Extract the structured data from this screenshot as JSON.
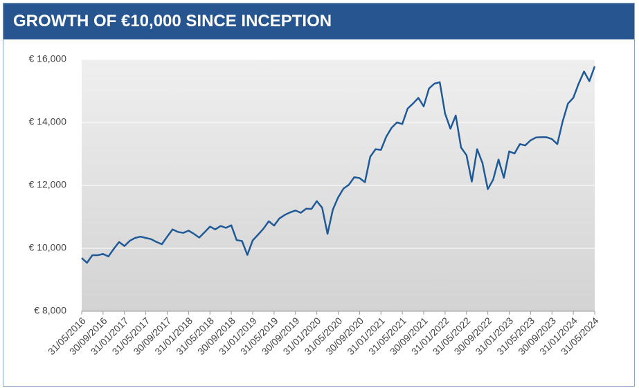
{
  "chart_data": {
    "type": "line",
    "title": "GROWTH OF €10,000 SINCE INCEPTION",
    "categories": [
      "31/05/2016",
      null,
      null,
      null,
      "30/09/2016",
      null,
      null,
      null,
      "31/01/2017",
      null,
      null,
      null,
      "31/05/2017",
      null,
      null,
      null,
      "30/09/2017",
      null,
      null,
      null,
      "31/01/2018",
      null,
      null,
      null,
      "31/05/2018",
      null,
      null,
      null,
      "30/09/2018",
      null,
      null,
      null,
      "31/01/2019",
      null,
      null,
      null,
      "31/05/2019",
      null,
      null,
      null,
      "30/09/2019",
      null,
      null,
      null,
      "31/01/2020",
      null,
      null,
      null,
      "31/05/2020",
      null,
      null,
      null,
      "30/09/2020",
      null,
      null,
      null,
      "31/01/2021",
      null,
      null,
      null,
      "31/05/2021",
      null,
      null,
      null,
      "30/09/2021",
      null,
      null,
      null,
      "31/01/2022",
      null,
      null,
      null,
      "31/05/2022",
      null,
      null,
      null,
      "30/09/2022",
      null,
      null,
      null,
      "31/01/2023",
      null,
      null,
      null,
      "31/05/2023",
      null,
      null,
      null,
      "30/09/2023",
      null,
      null,
      null,
      "31/01/2024",
      null,
      null,
      null,
      "31/05/2024"
    ],
    "values": [
      9690,
      9540,
      9780,
      9780,
      9820,
      9740,
      9980,
      10200,
      10070,
      10240,
      10330,
      10370,
      10330,
      10290,
      10200,
      10130,
      10370,
      10600,
      10520,
      10490,
      10560,
      10460,
      10340,
      10510,
      10690,
      10600,
      10710,
      10650,
      10730,
      10260,
      10230,
      9790,
      10250,
      10430,
      10620,
      10860,
      10720,
      10950,
      11060,
      11140,
      11200,
      11130,
      11260,
      11250,
      11500,
      11290,
      10460,
      11230,
      11620,
      11900,
      12020,
      12260,
      12230,
      12100,
      12910,
      13150,
      13130,
      13550,
      13830,
      14000,
      13950,
      14440,
      14600,
      14780,
      14510,
      15080,
      15230,
      15280,
      14280,
      13800,
      14220,
      13200,
      12960,
      12120,
      13150,
      12710,
      11880,
      12180,
      12820,
      12240,
      13080,
      13010,
      13310,
      13270,
      13430,
      13520,
      13530,
      13530,
      13470,
      13310,
      14030,
      14600,
      14780,
      15230,
      15620,
      15310,
      15780
    ],
    "color": "#1f5a96",
    "ylim": [
      8000,
      16000
    ],
    "yticks": [
      {
        "value": 8000,
        "label": "€ 8,000"
      },
      {
        "value": 10000,
        "label": "€ 10,000"
      },
      {
        "value": 12000,
        "label": "€ 12,000"
      },
      {
        "value": 14000,
        "label": "€ 14,000"
      },
      {
        "value": 16000,
        "label": "€ 16,000"
      }
    ],
    "grid": true
  }
}
